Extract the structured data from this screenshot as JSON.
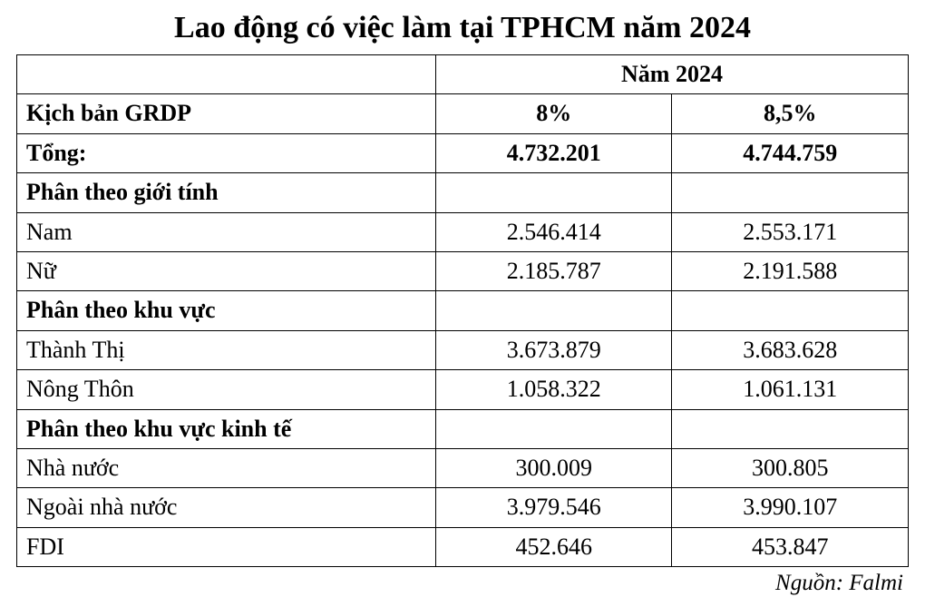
{
  "title": "Lao động có việc làm tại TPHCM năm 2024",
  "header": {
    "year": "Năm 2024",
    "grdp_label": "Kịch bản GRDP",
    "scenario1": "8%",
    "scenario2": "8,5%"
  },
  "total": {
    "label": "Tổng:",
    "v1": "4.732.201",
    "v2": "4.744.759"
  },
  "sections": {
    "gender": {
      "header": "Phân theo giới tính",
      "rows": [
        {
          "label": "Nam",
          "v1": "2.546.414",
          "v2": "2.553.171"
        },
        {
          "label": "Nữ",
          "v1": "2.185.787",
          "v2": "2.191.588"
        }
      ]
    },
    "area": {
      "header": "Phân theo khu vực",
      "rows": [
        {
          "label": "Thành Thị",
          "v1": "3.673.879",
          "v2": "3.683.628"
        },
        {
          "label": "Nông Thôn",
          "v1": "1.058.322",
          "v2": "1.061.131"
        }
      ]
    },
    "sector": {
      "header": "Phân theo khu vực kinh tế",
      "rows": [
        {
          "label": "Nhà nước",
          "v1": "300.009",
          "v2": "300.805"
        },
        {
          "label": "Ngoài nhà nước",
          "v1": "3.979.546",
          "v2": "3.990.107"
        },
        {
          "label": "FDI",
          "v1": "452.646",
          "v2": "453.847"
        }
      ]
    }
  },
  "source": "Nguồn: Falmi",
  "styling": {
    "font_family": "Times New Roman",
    "title_fontsize": 34,
    "cell_fontsize": 26,
    "source_fontsize": 25,
    "border_color": "#000000",
    "border_width": 1.5,
    "background_color": "#ffffff",
    "text_color": "#000000",
    "column_widths_pct": [
      47,
      26.5,
      26.5
    ]
  }
}
